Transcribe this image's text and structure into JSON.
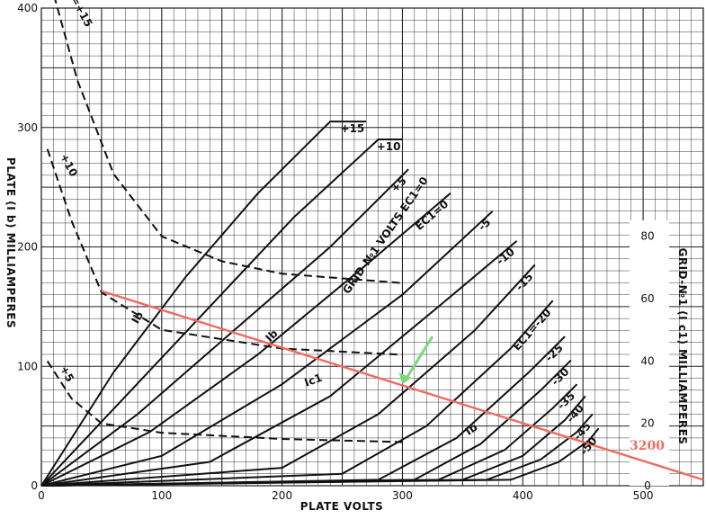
{
  "chart_data": {
    "type": "line",
    "xlabel": "PLATE VOLTS",
    "ylabel": "PLATE (I b) MILLIAMPERES",
    "y2label": "GRID-№1 (I c1) MILLIAMPERES",
    "xlim": [
      0,
      550
    ],
    "ylim": [
      0,
      400
    ],
    "y2lim": [
      0,
      88
    ],
    "x_ticks": [
      "0",
      "100",
      "200",
      "300",
      "400",
      "500"
    ],
    "y_ticks": [
      "0",
      "100",
      "200",
      "300",
      "400"
    ],
    "y2_ticks": [
      "0",
      "20",
      "40",
      "60",
      "80"
    ],
    "grid": true,
    "plate_current_curves": [
      {
        "label": "+15",
        "points": [
          [
            0,
            0
          ],
          [
            60,
            95
          ],
          [
            120,
            175
          ],
          [
            180,
            245
          ],
          [
            240,
            305
          ],
          [
            270,
            305
          ]
        ]
      },
      {
        "label": "+10",
        "points": [
          [
            0,
            0
          ],
          [
            70,
            75
          ],
          [
            140,
            150
          ],
          [
            210,
            225
          ],
          [
            280,
            290
          ],
          [
            300,
            290
          ]
        ]
      },
      {
        "label": "+5",
        "points": [
          [
            0,
            0
          ],
          [
            80,
            60
          ],
          [
            160,
            130
          ],
          [
            240,
            200
          ],
          [
            305,
            265
          ]
        ]
      },
      {
        "label": "EC1=0",
        "points": [
          [
            0,
            0
          ],
          [
            90,
            45
          ],
          [
            180,
            110
          ],
          [
            270,
            185
          ],
          [
            340,
            245
          ]
        ]
      },
      {
        "label": "-5",
        "points": [
          [
            0,
            0
          ],
          [
            100,
            25
          ],
          [
            200,
            85
          ],
          [
            300,
            160
          ],
          [
            375,
            230
          ]
        ]
      },
      {
        "label": "-10",
        "points": [
          [
            0,
            0
          ],
          [
            140,
            20
          ],
          [
            240,
            75
          ],
          [
            330,
            150
          ],
          [
            395,
            205
          ]
        ]
      },
      {
        "label": "-15",
        "points": [
          [
            0,
            0
          ],
          [
            200,
            15
          ],
          [
            280,
            60
          ],
          [
            360,
            130
          ],
          [
            410,
            185
          ]
        ]
      },
      {
        "label": "EC1=-20",
        "points": [
          [
            0,
            0
          ],
          [
            250,
            10
          ],
          [
            320,
            50
          ],
          [
            390,
            115
          ],
          [
            425,
            155
          ]
        ]
      },
      {
        "label": "-25",
        "points": [
          [
            0,
            0
          ],
          [
            280,
            5
          ],
          [
            345,
            40
          ],
          [
            405,
            95
          ],
          [
            435,
            125
          ]
        ]
      },
      {
        "label": "-30",
        "points": [
          [
            0,
            0
          ],
          [
            310,
            5
          ],
          [
            365,
            35
          ],
          [
            415,
            80
          ],
          [
            440,
            105
          ]
        ]
      },
      {
        "label": "-35",
        "points": [
          [
            0,
            0
          ],
          [
            330,
            5
          ],
          [
            385,
            30
          ],
          [
            425,
            65
          ],
          [
            445,
            85
          ]
        ]
      },
      {
        "label": "-40",
        "points": [
          [
            0,
            0
          ],
          [
            350,
            5
          ],
          [
            400,
            25
          ],
          [
            435,
            55
          ],
          [
            452,
            75
          ]
        ]
      },
      {
        "label": "-45",
        "points": [
          [
            0,
            0
          ],
          [
            370,
            5
          ],
          [
            415,
            22
          ],
          [
            445,
            45
          ],
          [
            458,
            60
          ]
        ]
      },
      {
        "label": "-50",
        "points": [
          [
            0,
            0
          ],
          [
            390,
            5
          ],
          [
            430,
            20
          ],
          [
            455,
            38
          ],
          [
            463,
            48
          ]
        ]
      }
    ],
    "grid_current_curves": [
      {
        "label": "EC1=+15",
        "points": [
          [
            5,
            165
          ],
          [
            30,
            130
          ],
          [
            60,
            100
          ],
          [
            100,
            80
          ],
          [
            150,
            72
          ],
          [
            200,
            68
          ],
          [
            300,
            65
          ]
        ]
      },
      {
        "label": "+10",
        "points": [
          [
            5,
            108
          ],
          [
            25,
            85
          ],
          [
            50,
            62
          ],
          [
            100,
            50
          ],
          [
            200,
            44
          ],
          [
            300,
            42
          ]
        ]
      },
      {
        "label": "+5",
        "points": [
          [
            5,
            40
          ],
          [
            25,
            28
          ],
          [
            50,
            20
          ],
          [
            100,
            17
          ],
          [
            200,
            15
          ],
          [
            300,
            14
          ]
        ]
      }
    ],
    "annotations": [
      "Ib",
      "Ib",
      "Ic1",
      "Ib",
      "GRID-№1 VOLTS EC1=0"
    ],
    "load_line": {
      "label": "3200",
      "points": [
        [
          50,
          163
        ],
        [
          550,
          5
        ]
      ],
      "color": "#f06a60"
    },
    "arrow": {
      "from": [
        325,
        125
      ],
      "to": [
        300,
        85
      ],
      "color": "#7dd87a"
    },
    "colors": {
      "curve": "#111111",
      "grid": "#333333",
      "load_line": "#f06a60",
      "arrow": "#7dd87a"
    }
  }
}
